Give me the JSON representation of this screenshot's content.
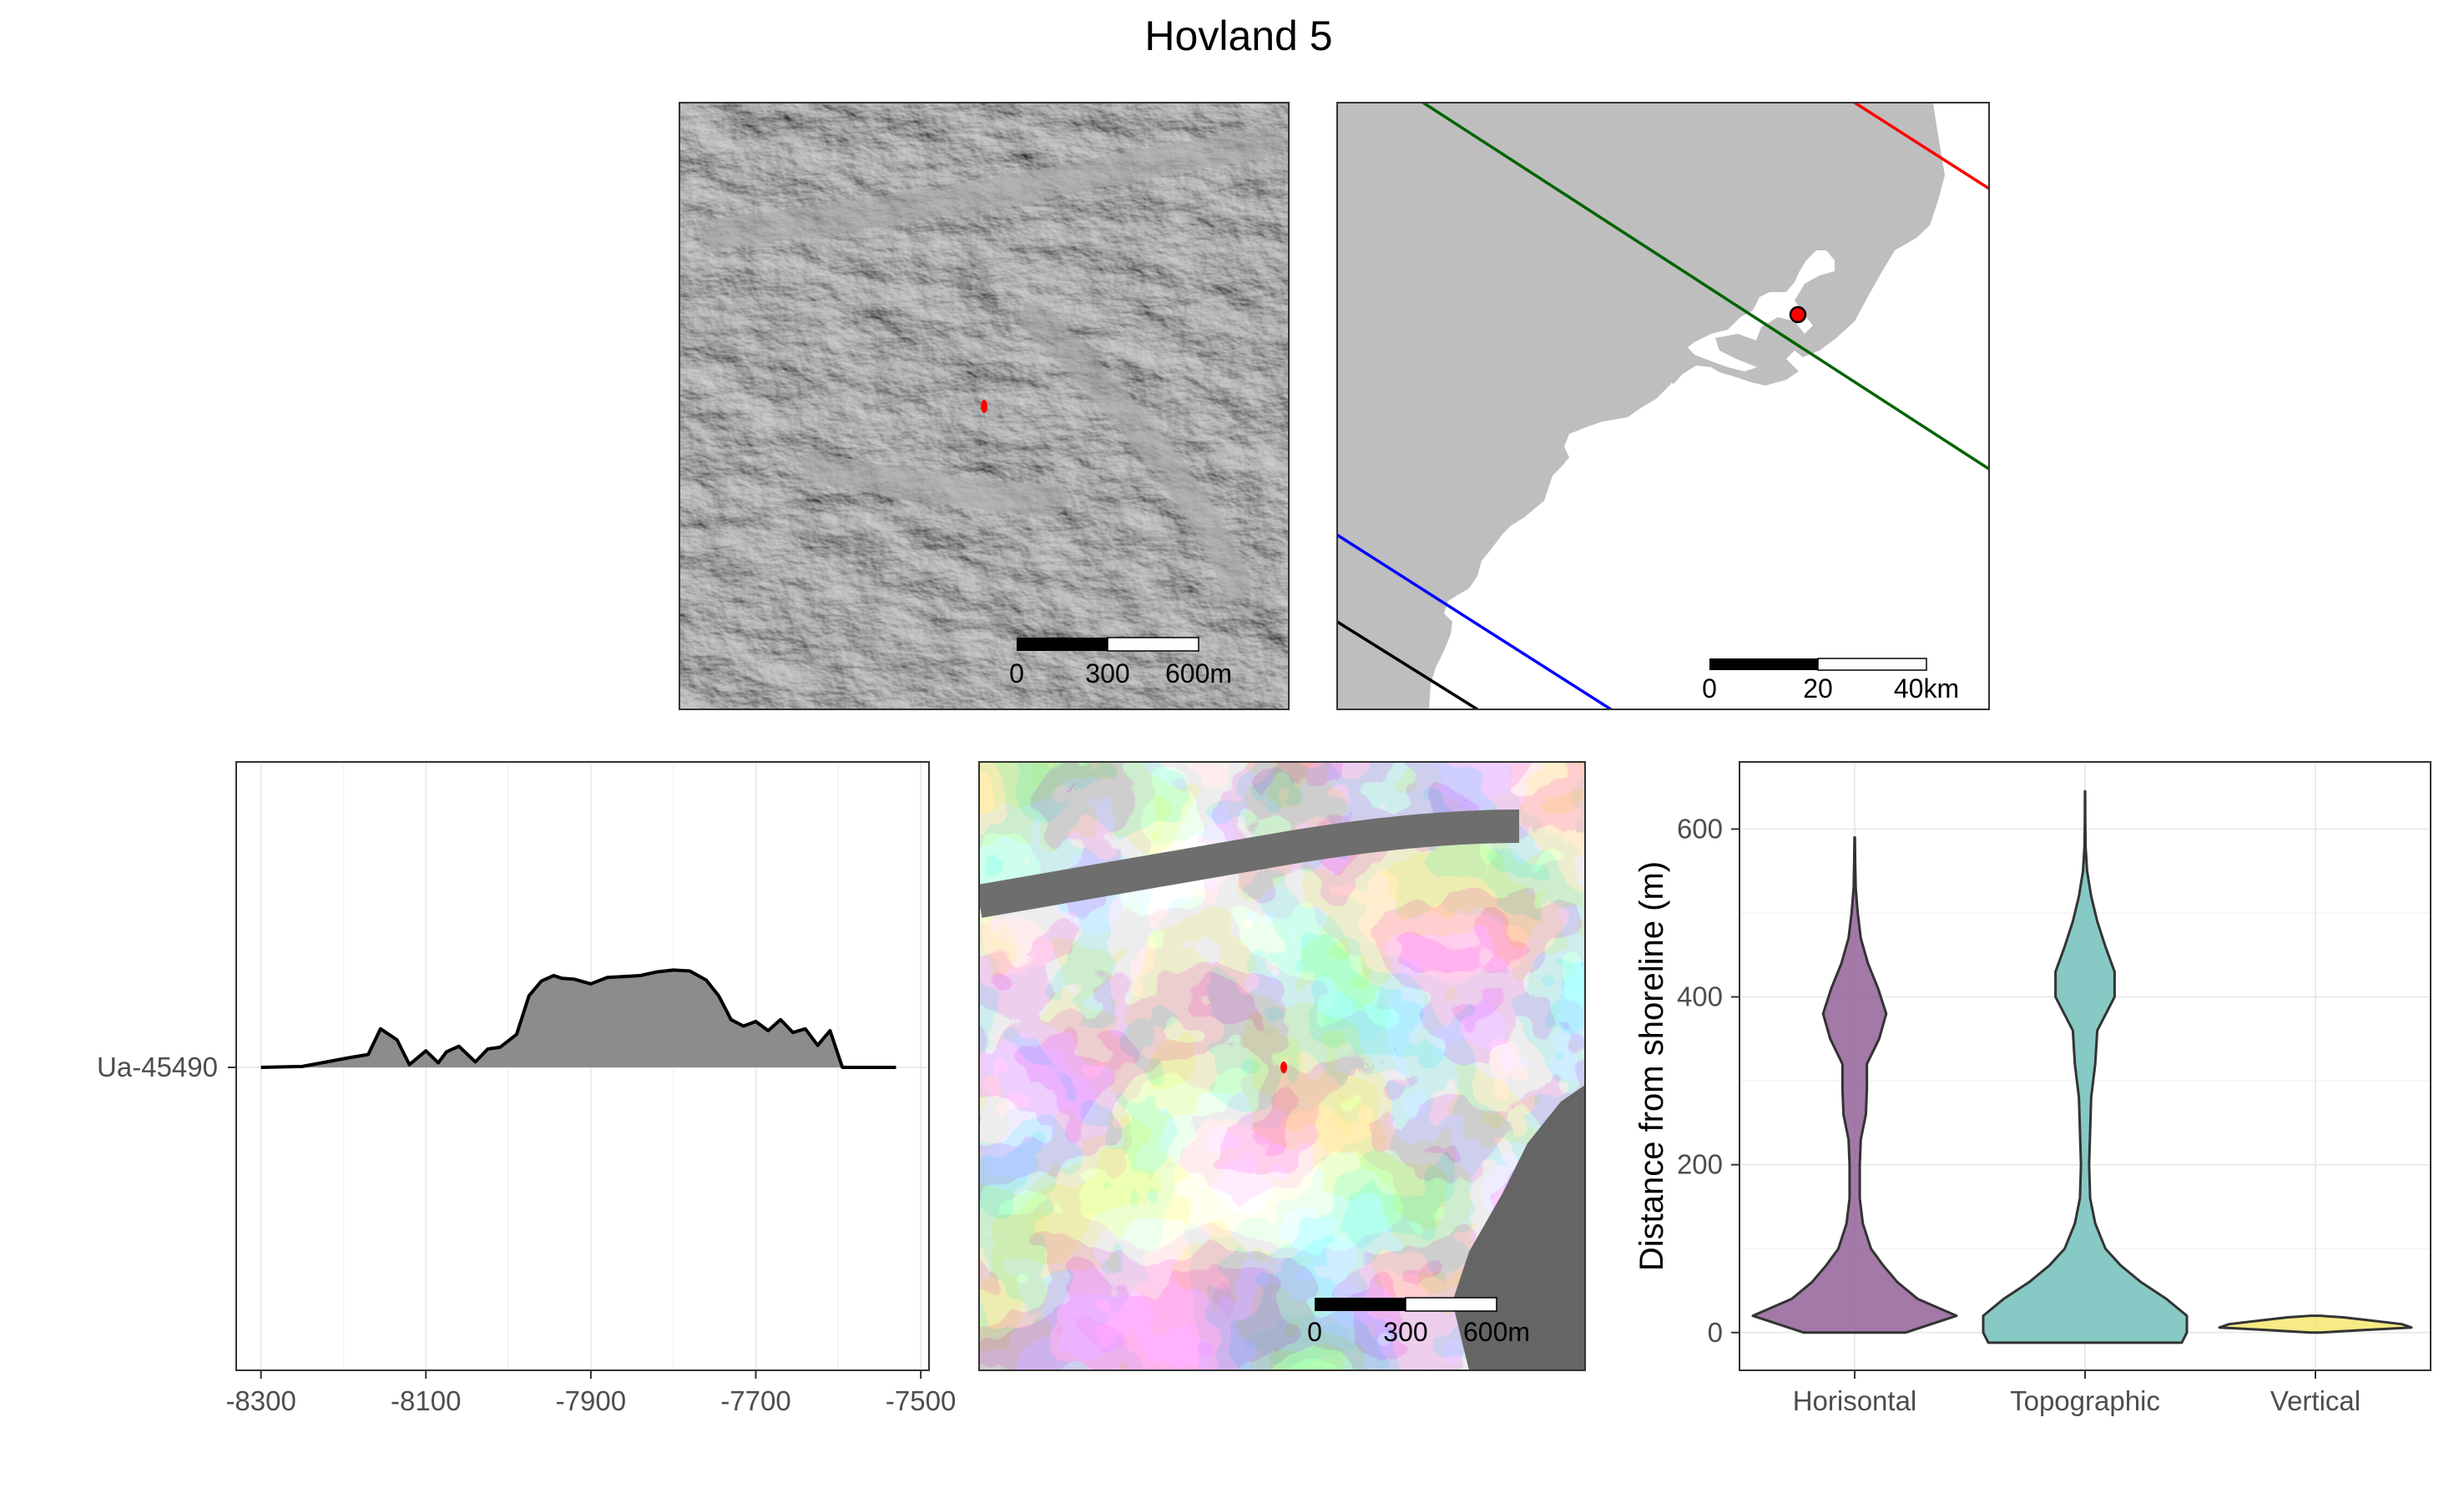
{
  "title": "Hovland 5",
  "colors": {
    "site_marker": "#ff0000",
    "land": "#bebebe",
    "shoreline_red": "#ff0000",
    "shoreline_green": "#006400",
    "shoreline_blue": "#0000ff",
    "shoreline_black": "#000000",
    "horisontal": "#8e5c94",
    "topographic": "#6cbdb7",
    "vertical": "#f5e66a",
    "density_fill": "#8c8c8c"
  },
  "panels": {
    "hillshade": {
      "scale": {
        "labels": [
          "0",
          "300",
          "600m"
        ]
      }
    },
    "overview": {
      "scale": {
        "labels": [
          "0",
          "20",
          "40km"
        ]
      }
    },
    "elevation": {
      "scale": {
        "labels": [
          "0",
          "300",
          "600m"
        ]
      }
    }
  },
  "chart_data": [
    {
      "type": "area",
      "title": "",
      "xlabel": "",
      "ylabel": "",
      "category": "Ua-45490",
      "xlim": [
        -8330,
        -7490
      ],
      "x_ticks": [
        "-8300",
        "-8100",
        "-7900",
        "-7700",
        "-7500"
      ],
      "series": [
        {
          "x": [
            -8300,
            -8250,
            -8220,
            -8190,
            -8170,
            -8155,
            -8135,
            -8120,
            -8100,
            -8085,
            -8075,
            -8060,
            -8040,
            -8025,
            -8010,
            -7990,
            -7975,
            -7960,
            -7945,
            -7935,
            -7920,
            -7900,
            -7880,
            -7860,
            -7840,
            -7820,
            -7800,
            -7780,
            -7760,
            -7745,
            -7730,
            -7715,
            -7700,
            -7685,
            -7670,
            -7655,
            -7640,
            -7625,
            -7610,
            -7595,
            -7575,
            -7530
          ],
          "y": [
            0.0,
            0.01,
            0.06,
            0.11,
            0.14,
            0.42,
            0.3,
            0.03,
            0.18,
            0.05,
            0.17,
            0.23,
            0.06,
            0.2,
            0.22,
            0.36,
            0.78,
            0.94,
            1.0,
            0.97,
            0.96,
            0.91,
            0.98,
            0.99,
            1.0,
            1.04,
            1.06,
            1.05,
            0.95,
            0.78,
            0.52,
            0.45,
            0.5,
            0.4,
            0.52,
            0.38,
            0.42,
            0.24,
            0.4,
            0.0,
            0.0,
            0.0
          ]
        }
      ]
    },
    {
      "type": "violin",
      "title": "",
      "xlabel": "",
      "ylabel": "Distance from shoreline (m)",
      "ylim": [
        -45,
        680
      ],
      "y_ticks": [
        "0",
        "200",
        "400",
        "600"
      ],
      "categories": [
        "Horisontal",
        "Topographic",
        "Vertical"
      ],
      "series": [
        {
          "name": "Horisontal",
          "profile_y": [
            0,
            20,
            40,
            60,
            80,
            100,
            130,
            160,
            200,
            230,
            260,
            290,
            320,
            350,
            380,
            410,
            440,
            470,
            500,
            530,
            560,
            590
          ],
          "profile_w": [
            0.5,
            1.0,
            0.62,
            0.42,
            0.28,
            0.16,
            0.08,
            0.05,
            0.05,
            0.06,
            0.11,
            0.12,
            0.12,
            0.24,
            0.31,
            0.23,
            0.13,
            0.06,
            0.03,
            0.01,
            0.005,
            0.002
          ]
        },
        {
          "name": "Topographic",
          "profile_y": [
            -12,
            0,
            20,
            40,
            60,
            80,
            100,
            130,
            160,
            200,
            240,
            280,
            320,
            360,
            400,
            430,
            460,
            490,
            520,
            550,
            580,
            610,
            645
          ],
          "profile_w": [
            0.95,
            1.0,
            1.0,
            0.8,
            0.55,
            0.35,
            0.2,
            0.1,
            0.05,
            0.04,
            0.05,
            0.06,
            0.1,
            0.12,
            0.29,
            0.29,
            0.2,
            0.12,
            0.06,
            0.02,
            0.005,
            0.002,
            0.001
          ]
        },
        {
          "name": "Vertical",
          "profile_y": [
            0,
            3,
            6,
            10,
            14,
            18,
            20
          ],
          "profile_w": [
            0.05,
            0.5,
            1.0,
            0.9,
            0.6,
            0.3,
            0.05
          ]
        }
      ]
    }
  ]
}
